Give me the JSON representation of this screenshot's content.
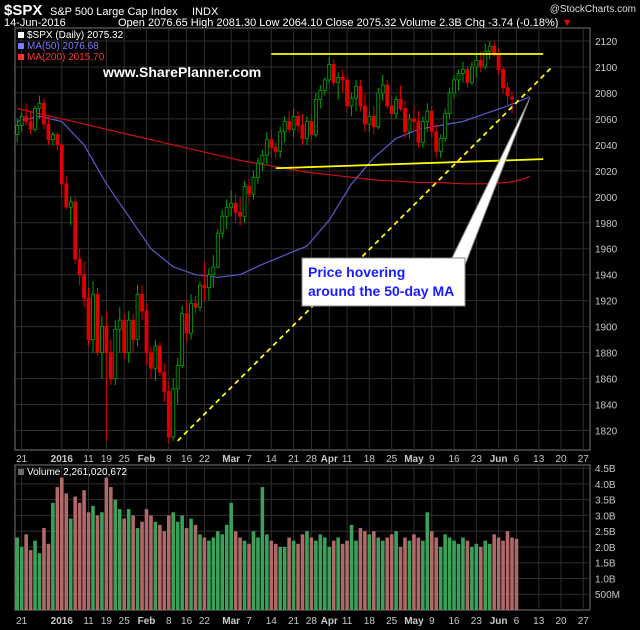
{
  "header": {
    "symbol": "$SPX",
    "name": "S&P 500 Large Cap Index",
    "exchange": "INDX",
    "brand": "@StockCharts.com",
    "date": "14-Jun-2016",
    "open_label": "Open",
    "open": "2076.65",
    "high_label": "High",
    "high": "2081.30",
    "low_label": "Low",
    "low": "2064.10",
    "close_label": "Close",
    "close": "2075.32",
    "volume_label": "Volume",
    "volume": "2.3B",
    "chg_label": "Chg",
    "chg": "-3.74 (-0.18%)",
    "chg_arrow": "▼"
  },
  "watermark": "www.SharePlanner.com",
  "annotation": "Price hovering\naround the 50-day MA",
  "colors": {
    "up": "#00a800",
    "down": "#e00000",
    "ma50": "#5a5acd",
    "ma200": "#cc1111",
    "trendline": "#ffff00",
    "grid": "#2e2e2e",
    "axis": "#c8c8c8",
    "vol_up": "#3aa05a",
    "vol_down": "#b06868"
  },
  "chart_data": [
    {
      "type": "candlestick",
      "legend": [
        {
          "label": "$SPX (Daily) 2075.32",
          "color": "#ffffff"
        },
        {
          "label": "MA(50) 2076.68",
          "color": "#7a7aff"
        },
        {
          "label": "MA(200) 2015.70",
          "color": "#ff3333"
        }
      ],
      "ylim": [
        1805,
        2130
      ],
      "y_ticks": [
        1820,
        1840,
        1860,
        1880,
        1900,
        1920,
        1940,
        1960,
        1980,
        2000,
        2020,
        2040,
        2060,
        2080,
        2100,
        2120
      ],
      "x_labels": [
        {
          "d": 1,
          "t": "21"
        },
        {
          "d": 10,
          "t": "2016"
        },
        {
          "d": 16,
          "t": "11"
        },
        {
          "d": 20,
          "t": "19"
        },
        {
          "d": 24,
          "t": "25"
        },
        {
          "d": 29,
          "t": "Feb"
        },
        {
          "d": 34,
          "t": "8"
        },
        {
          "d": 38,
          "t": "16"
        },
        {
          "d": 42,
          "t": "22"
        },
        {
          "d": 48,
          "t": "Mar"
        },
        {
          "d": 52,
          "t": "7"
        },
        {
          "d": 57,
          "t": "14"
        },
        {
          "d": 62,
          "t": "21"
        },
        {
          "d": 66,
          "t": "28"
        },
        {
          "d": 70,
          "t": "Apr"
        },
        {
          "d": 74,
          "t": "11"
        },
        {
          "d": 79,
          "t": "18"
        },
        {
          "d": 84,
          "t": "25"
        },
        {
          "d": 89,
          "t": "May"
        },
        {
          "d": 93,
          "t": "9"
        },
        {
          "d": 98,
          "t": "16"
        },
        {
          "d": 103,
          "t": "23"
        },
        {
          "d": 108,
          "t": "Jun"
        },
        {
          "d": 112,
          "t": "6"
        },
        {
          "d": 117,
          "t": "13"
        },
        {
          "d": 122,
          "t": "20"
        },
        {
          "d": 127,
          "t": "27"
        }
      ],
      "n_slots": 129,
      "candles": [
        [
          2048,
          2060,
          2042,
          2055
        ],
        [
          2055,
          2065,
          2050,
          2062
        ],
        [
          2062,
          2072,
          2055,
          2058
        ],
        [
          2058,
          2066,
          2048,
          2052
        ],
        [
          2052,
          2070,
          2050,
          2068
        ],
        [
          2068,
          2078,
          2060,
          2072
        ],
        [
          2072,
          2076,
          2052,
          2056
        ],
        [
          2056,
          2062,
          2040,
          2044
        ],
        [
          2044,
          2050,
          2040,
          2048
        ],
        [
          2048,
          2050,
          2036,
          2040
        ],
        [
          2040,
          2042,
          2000,
          2010
        ],
        [
          2010,
          2016,
          1990,
          1992
        ],
        [
          1992,
          2000,
          1978,
          1996
        ],
        [
          1996,
          2000,
          1948,
          1952
        ],
        [
          1952,
          1960,
          1932,
          1940
        ],
        [
          1940,
          1950,
          1915,
          1922
        ],
        [
          1922,
          1930,
          1885,
          1890
        ],
        [
          1890,
          1935,
          1880,
          1925
        ],
        [
          1925,
          1930,
          1878,
          1880
        ],
        [
          1880,
          1908,
          1860,
          1900
        ],
        [
          1900,
          1912,
          1812,
          1880
        ],
        [
          1880,
          1890,
          1855,
          1860
        ],
        [
          1860,
          1905,
          1855,
          1898
        ],
        [
          1898,
          1915,
          1880,
          1905
        ],
        [
          1905,
          1910,
          1875,
          1880
        ],
        [
          1880,
          1912,
          1872,
          1905
        ],
        [
          1905,
          1910,
          1880,
          1890
        ],
        [
          1890,
          1932,
          1885,
          1925
        ],
        [
          1925,
          1932,
          1905,
          1912
        ],
        [
          1912,
          1918,
          1870,
          1880
        ],
        [
          1880,
          1885,
          1860,
          1868
        ],
        [
          1868,
          1890,
          1858,
          1885
        ],
        [
          1885,
          1888,
          1862,
          1865
        ],
        [
          1865,
          1872,
          1842,
          1850
        ],
        [
          1850,
          1858,
          1810,
          1815
        ],
        [
          1815,
          1860,
          1812,
          1852
        ],
        [
          1852,
          1876,
          1840,
          1870
        ],
        [
          1870,
          1916,
          1868,
          1910
        ],
        [
          1910,
          1920,
          1888,
          1895
        ],
        [
          1895,
          1925,
          1890,
          1918
        ],
        [
          1918,
          1924,
          1910,
          1915
        ],
        [
          1915,
          1935,
          1912,
          1932
        ],
        [
          1932,
          1950,
          1920,
          1930
        ],
        [
          1930,
          1945,
          1920,
          1940
        ],
        [
          1940,
          1955,
          1930,
          1946
        ],
        [
          1946,
          1975,
          1945,
          1972
        ],
        [
          1972,
          1990,
          1968,
          1985
        ],
        [
          1985,
          1998,
          1975,
          1992
        ],
        [
          1992,
          2005,
          1985,
          1995
        ],
        [
          1995,
          2002,
          1980,
          1988
        ],
        [
          1988,
          2000,
          1978,
          1985
        ],
        [
          1985,
          2012,
          1980,
          2008
        ],
        [
          2008,
          2014,
          1995,
          2002
        ],
        [
          2002,
          2020,
          1998,
          2015
        ],
        [
          2015,
          2030,
          2010,
          2026
        ],
        [
          2026,
          2036,
          2020,
          2032
        ],
        [
          2032,
          2050,
          2025,
          2044
        ],
        [
          2044,
          2052,
          2030,
          2038
        ],
        [
          2038,
          2042,
          2030,
          2035
        ],
        [
          2035,
          2054,
          2030,
          2050
        ],
        [
          2050,
          2062,
          2042,
          2058
        ],
        [
          2058,
          2066,
          2050,
          2052
        ],
        [
          2052,
          2068,
          2046,
          2062
        ],
        [
          2062,
          2066,
          2050,
          2055
        ],
        [
          2055,
          2064,
          2040,
          2045
        ],
        [
          2045,
          2062,
          2040,
          2058
        ],
        [
          2058,
          2064,
          2044,
          2048
        ],
        [
          2048,
          2080,
          2046,
          2075
        ],
        [
          2075,
          2086,
          2068,
          2082
        ],
        [
          2082,
          2092,
          2078,
          2090
        ],
        [
          2090,
          2108,
          2088,
          2102
        ],
        [
          2102,
          2106,
          2085,
          2088
        ],
        [
          2088,
          2096,
          2075,
          2092
        ],
        [
          2092,
          2098,
          2080,
          2090
        ],
        [
          2090,
          2094,
          2066,
          2070
        ],
        [
          2070,
          2080,
          2062,
          2076
        ],
        [
          2076,
          2090,
          2066,
          2085
        ],
        [
          2085,
          2090,
          2066,
          2070
        ],
        [
          2070,
          2080,
          2050,
          2056
        ],
        [
          2056,
          2066,
          2050,
          2062
        ],
        [
          2062,
          2070,
          2048,
          2054
        ],
        [
          2054,
          2084,
          2052,
          2080
        ],
        [
          2080,
          2094,
          2074,
          2086
        ],
        [
          2086,
          2090,
          2068,
          2070
        ],
        [
          2070,
          2078,
          2060,
          2064
        ],
        [
          2064,
          2078,
          2060,
          2075
        ],
        [
          2075,
          2086,
          2066,
          2068
        ],
        [
          2068,
          2074,
          2045,
          2050
        ],
        [
          2050,
          2064,
          2045,
          2060
        ],
        [
          2060,
          2070,
          2050,
          2058
        ],
        [
          2058,
          2066,
          2038,
          2042
        ],
        [
          2042,
          2062,
          2038,
          2058
        ],
        [
          2058,
          2072,
          2050,
          2066
        ],
        [
          2066,
          2070,
          2046,
          2050
        ],
        [
          2050,
          2056,
          2030,
          2035
        ],
        [
          2035,
          2048,
          2030,
          2045
        ],
        [
          2045,
          2068,
          2042,
          2064
        ],
        [
          2064,
          2084,
          2060,
          2080
        ],
        [
          2080,
          2094,
          2076,
          2090
        ],
        [
          2090,
          2098,
          2082,
          2095
        ],
        [
          2095,
          2104,
          2088,
          2098
        ],
        [
          2098,
          2100,
          2084,
          2088
        ],
        [
          2088,
          2104,
          2086,
          2100
        ],
        [
          2100,
          2110,
          2092,
          2105
        ],
        [
          2105,
          2112,
          2096,
          2100
        ],
        [
          2100,
          2118,
          2098,
          2112
        ],
        [
          2112,
          2120,
          2106,
          2116
        ],
        [
          2116,
          2120,
          2108,
          2110
        ],
        [
          2110,
          2114,
          2094,
          2098
        ],
        [
          2098,
          2100,
          2080,
          2084
        ],
        [
          2084,
          2088,
          2070,
          2078
        ],
        [
          2076.65,
          2081.3,
          2064.1,
          2075.32
        ]
      ],
      "ma50": [
        [
          0,
          2058
        ],
        [
          5,
          2062
        ],
        [
          10,
          2058
        ],
        [
          15,
          2040
        ],
        [
          20,
          2010
        ],
        [
          25,
          1985
        ],
        [
          30,
          1960
        ],
        [
          35,
          1946
        ],
        [
          40,
          1940
        ],
        [
          45,
          1938
        ],
        [
          50,
          1940
        ],
        [
          55,
          1948
        ],
        [
          60,
          1955
        ],
        [
          65,
          1962
        ],
        [
          70,
          1982
        ],
        [
          75,
          2010
        ],
        [
          80,
          2030
        ],
        [
          85,
          2045
        ],
        [
          90,
          2052
        ],
        [
          95,
          2055
        ],
        [
          100,
          2058
        ],
        [
          105,
          2064
        ],
        [
          110,
          2070
        ],
        [
          115,
          2077
        ]
      ],
      "ma200": [
        [
          0,
          2068
        ],
        [
          5,
          2064
        ],
        [
          10,
          2060
        ],
        [
          15,
          2056
        ],
        [
          20,
          2052
        ],
        [
          25,
          2048
        ],
        [
          30,
          2044
        ],
        [
          35,
          2040
        ],
        [
          40,
          2036
        ],
        [
          45,
          2032
        ],
        [
          50,
          2028
        ],
        [
          55,
          2025
        ],
        [
          60,
          2022
        ],
        [
          65,
          2019
        ],
        [
          70,
          2017
        ],
        [
          75,
          2015
        ],
        [
          80,
          2013
        ],
        [
          85,
          2012
        ],
        [
          90,
          2011
        ],
        [
          95,
          2011
        ],
        [
          100,
          2010
        ],
        [
          105,
          2010
        ],
        [
          110,
          2011
        ],
        [
          113,
          2013
        ],
        [
          115,
          2015.7
        ]
      ],
      "trendlines": [
        {
          "style": "solid",
          "from": [
            57,
            2110
          ],
          "to": [
            118,
            2110
          ]
        },
        {
          "style": "solid",
          "from": [
            58,
            2022
          ],
          "to": [
            118,
            2029
          ]
        },
        {
          "style": "dashed",
          "from": [
            36,
            1812
          ],
          "to": [
            120,
            2100
          ]
        }
      ],
      "callout": {
        "tip": [
          115,
          2076
        ]
      }
    },
    {
      "type": "bar",
      "legend": [
        {
          "label": "Volume 2,261,020,672",
          "color": "#ffffff"
        }
      ],
      "ylim": [
        0,
        4.6
      ],
      "y_ticks": [
        {
          "v": 0.5,
          "t": "500M"
        },
        {
          "v": 1.0,
          "t": "1.0B"
        },
        {
          "v": 1.5,
          "t": "1.5B"
        },
        {
          "v": 2.0,
          "t": "2.0B"
        },
        {
          "v": 2.5,
          "t": "2.5B"
        },
        {
          "v": 3.0,
          "t": "3.0B"
        },
        {
          "v": 3.5,
          "t": "3.5B"
        },
        {
          "v": 4.0,
          "t": "4.0B"
        },
        {
          "v": 4.5,
          "t": "4.5B"
        }
      ],
      "values": [
        2.3,
        2.0,
        2.4,
        1.9,
        2.2,
        1.8,
        2.6,
        2.1,
        3.4,
        3.9,
        4.2,
        3.7,
        2.9,
        3.6,
        3.4,
        3.8,
        3.1,
        3.3,
        3.0,
        3.1,
        4.2,
        3.9,
        3.5,
        3.2,
        2.9,
        3.2,
        3.0,
        2.6,
        2.8,
        3.2,
        3.0,
        2.8,
        2.7,
        2.5,
        3.0,
        3.1,
        2.8,
        3.0,
        2.6,
        2.9,
        2.7,
        2.4,
        2.3,
        2.2,
        2.3,
        2.5,
        2.4,
        2.7,
        3.4,
        2.5,
        2.3,
        2.2,
        2.1,
        2.5,
        2.3,
        3.9,
        2.4,
        2.2,
        2.1,
        2.0,
        2.0,
        2.3,
        2.2,
        2.1,
        2.4,
        2.5,
        2.3,
        2.2,
        2.4,
        2.3,
        2.0,
        2.2,
        2.3,
        2.1,
        2.2,
        2.7,
        2.2,
        2.6,
        2.5,
        2.4,
        2.5,
        2.3,
        2.2,
        2.3,
        2.4,
        2.5,
        2.0,
        2.3,
        2.2,
        2.4,
        2.3,
        2.2,
        3.1,
        2.5,
        2.3,
        2.0,
        2.4,
        2.3,
        2.2,
        2.1,
        2.3,
        2.2,
        2.0,
        2.1,
        2.0,
        2.2,
        2.1,
        2.4,
        2.3,
        2.2,
        2.5,
        2.3,
        2.26
      ]
    }
  ]
}
